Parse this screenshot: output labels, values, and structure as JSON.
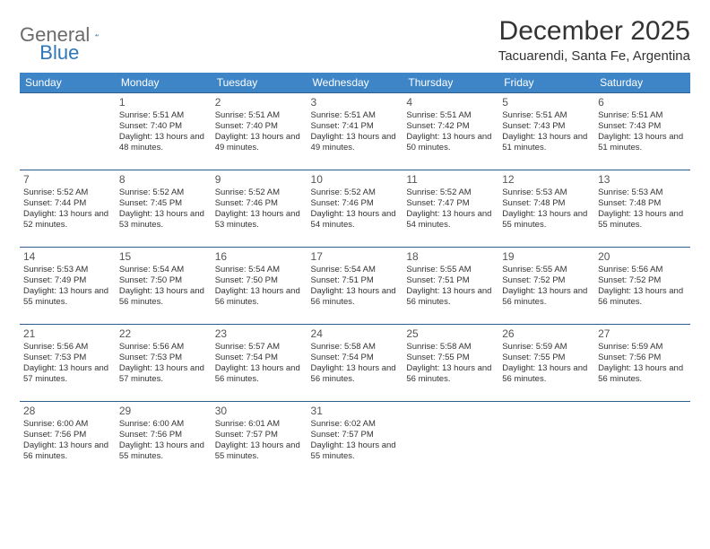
{
  "logo": {
    "general": "General",
    "blue": "Blue"
  },
  "title": "December 2025",
  "location": "Tacuarendi, Santa Fe, Argentina",
  "colors": {
    "header_bg": "#3d85c6",
    "header_text": "#ffffff",
    "cell_border": "#2f5e8c",
    "logo_gray": "#6b6b6b",
    "logo_blue": "#2f77b8"
  },
  "day_headers": [
    "Sunday",
    "Monday",
    "Tuesday",
    "Wednesday",
    "Thursday",
    "Friday",
    "Saturday"
  ],
  "weeks": [
    [
      null,
      {
        "n": "1",
        "sr": "5:51 AM",
        "ss": "7:40 PM",
        "dl": "13 hours and 48 minutes."
      },
      {
        "n": "2",
        "sr": "5:51 AM",
        "ss": "7:40 PM",
        "dl": "13 hours and 49 minutes."
      },
      {
        "n": "3",
        "sr": "5:51 AM",
        "ss": "7:41 PM",
        "dl": "13 hours and 49 minutes."
      },
      {
        "n": "4",
        "sr": "5:51 AM",
        "ss": "7:42 PM",
        "dl": "13 hours and 50 minutes."
      },
      {
        "n": "5",
        "sr": "5:51 AM",
        "ss": "7:43 PM",
        "dl": "13 hours and 51 minutes."
      },
      {
        "n": "6",
        "sr": "5:51 AM",
        "ss": "7:43 PM",
        "dl": "13 hours and 51 minutes."
      }
    ],
    [
      {
        "n": "7",
        "sr": "5:52 AM",
        "ss": "7:44 PM",
        "dl": "13 hours and 52 minutes."
      },
      {
        "n": "8",
        "sr": "5:52 AM",
        "ss": "7:45 PM",
        "dl": "13 hours and 53 minutes."
      },
      {
        "n": "9",
        "sr": "5:52 AM",
        "ss": "7:46 PM",
        "dl": "13 hours and 53 minutes."
      },
      {
        "n": "10",
        "sr": "5:52 AM",
        "ss": "7:46 PM",
        "dl": "13 hours and 54 minutes."
      },
      {
        "n": "11",
        "sr": "5:52 AM",
        "ss": "7:47 PM",
        "dl": "13 hours and 54 minutes."
      },
      {
        "n": "12",
        "sr": "5:53 AM",
        "ss": "7:48 PM",
        "dl": "13 hours and 55 minutes."
      },
      {
        "n": "13",
        "sr": "5:53 AM",
        "ss": "7:48 PM",
        "dl": "13 hours and 55 minutes."
      }
    ],
    [
      {
        "n": "14",
        "sr": "5:53 AM",
        "ss": "7:49 PM",
        "dl": "13 hours and 55 minutes."
      },
      {
        "n": "15",
        "sr": "5:54 AM",
        "ss": "7:50 PM",
        "dl": "13 hours and 56 minutes."
      },
      {
        "n": "16",
        "sr": "5:54 AM",
        "ss": "7:50 PM",
        "dl": "13 hours and 56 minutes."
      },
      {
        "n": "17",
        "sr": "5:54 AM",
        "ss": "7:51 PM",
        "dl": "13 hours and 56 minutes."
      },
      {
        "n": "18",
        "sr": "5:55 AM",
        "ss": "7:51 PM",
        "dl": "13 hours and 56 minutes."
      },
      {
        "n": "19",
        "sr": "5:55 AM",
        "ss": "7:52 PM",
        "dl": "13 hours and 56 minutes."
      },
      {
        "n": "20",
        "sr": "5:56 AM",
        "ss": "7:52 PM",
        "dl": "13 hours and 56 minutes."
      }
    ],
    [
      {
        "n": "21",
        "sr": "5:56 AM",
        "ss": "7:53 PM",
        "dl": "13 hours and 57 minutes."
      },
      {
        "n": "22",
        "sr": "5:56 AM",
        "ss": "7:53 PM",
        "dl": "13 hours and 57 minutes."
      },
      {
        "n": "23",
        "sr": "5:57 AM",
        "ss": "7:54 PM",
        "dl": "13 hours and 56 minutes."
      },
      {
        "n": "24",
        "sr": "5:58 AM",
        "ss": "7:54 PM",
        "dl": "13 hours and 56 minutes."
      },
      {
        "n": "25",
        "sr": "5:58 AM",
        "ss": "7:55 PM",
        "dl": "13 hours and 56 minutes."
      },
      {
        "n": "26",
        "sr": "5:59 AM",
        "ss": "7:55 PM",
        "dl": "13 hours and 56 minutes."
      },
      {
        "n": "27",
        "sr": "5:59 AM",
        "ss": "7:56 PM",
        "dl": "13 hours and 56 minutes."
      }
    ],
    [
      {
        "n": "28",
        "sr": "6:00 AM",
        "ss": "7:56 PM",
        "dl": "13 hours and 56 minutes."
      },
      {
        "n": "29",
        "sr": "6:00 AM",
        "ss": "7:56 PM",
        "dl": "13 hours and 55 minutes."
      },
      {
        "n": "30",
        "sr": "6:01 AM",
        "ss": "7:57 PM",
        "dl": "13 hours and 55 minutes."
      },
      {
        "n": "31",
        "sr": "6:02 AM",
        "ss": "7:57 PM",
        "dl": "13 hours and 55 minutes."
      },
      null,
      null,
      null
    ]
  ],
  "labels": {
    "sunrise": "Sunrise:",
    "sunset": "Sunset:",
    "daylight": "Daylight:"
  }
}
